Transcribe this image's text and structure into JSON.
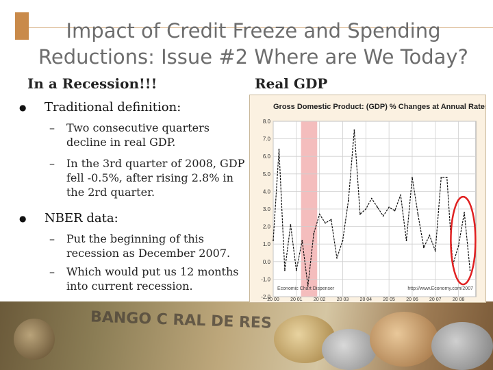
{
  "slide": {
    "title_line1": "Impact of Credit Freeze and Spending",
    "title_line2": "Reductions: Issue #2 Where are We Today?",
    "left_heading": "In a Recession!!!",
    "right_heading": "Real GDP",
    "bullets": [
      {
        "text": "Traditional definition:",
        "subs": [
          "Two consecutive quarters decline in real GDP.",
          "In the 3rd quarter of 2008, GDP fell -0.5%, after rising 2.8% in the 2rd quarter."
        ]
      },
      {
        "text": "NBER data:",
        "subs": [
          "Put the beginning of this recession as December 2007.",
          "Which would put us 12 months into current recession."
        ]
      }
    ],
    "background_text": "BANGO C    RAL DE RES"
  },
  "chart_data": {
    "type": "line",
    "title": "Gross Domestic Product: (GDP) % Changes at Annual Rates",
    "ylim": [
      -2.0,
      8.0
    ],
    "yticks": [
      "8.0",
      "7.0",
      "6.0",
      "5.0",
      "4.0",
      "3.0",
      "2.0",
      "1.0",
      "0.0",
      "-1.0",
      "-2.0"
    ],
    "xticks": [
      "20 00",
      "20 01",
      "20 02",
      "20 03",
      "20 04",
      "20 05",
      "20 06",
      "20 07",
      "20 08"
    ],
    "grid": true,
    "source_left": "Economic Chart Dispenser",
    "source_right": "http://www.Economy.com/2007",
    "recession_shade": {
      "x_start": 2001.2,
      "x_end": 2001.9
    },
    "highlight": "red ellipse around 2008 values",
    "series": [
      {
        "x": [
          2000.0,
          2000.25,
          2000.5,
          2000.75,
          2001.0,
          2001.25,
          2001.5,
          2001.75,
          2002.0,
          2002.25,
          2002.5,
          2002.75,
          2003.0,
          2003.25,
          2003.5,
          2003.75,
          2004.0,
          2004.25,
          2004.5,
          2004.75,
          2005.0,
          2005.25,
          2005.5,
          2005.75,
          2006.0,
          2006.25,
          2006.5,
          2006.75,
          2007.0,
          2007.25,
          2007.5,
          2007.75,
          2008.0,
          2008.25,
          2008.5
        ],
        "values": [
          1.2,
          6.4,
          -0.5,
          2.1,
          -0.5,
          1.2,
          -1.4,
          1.6,
          2.7,
          2.2,
          2.4,
          0.2,
          1.2,
          3.5,
          7.5,
          2.7,
          3.0,
          3.6,
          3.1,
          2.6,
          3.1,
          2.9,
          3.8,
          1.2,
          4.8,
          2.7,
          0.8,
          1.5,
          0.6,
          4.8,
          4.8,
          -0.2,
          0.9,
          2.8,
          -0.5
        ]
      }
    ]
  },
  "colors": {
    "title": "#6d6d6d",
    "accent": "#c98a4a",
    "chart_bg": "#fbf1e1",
    "shade": "#f2b2b2",
    "highlight": "#e02020"
  }
}
